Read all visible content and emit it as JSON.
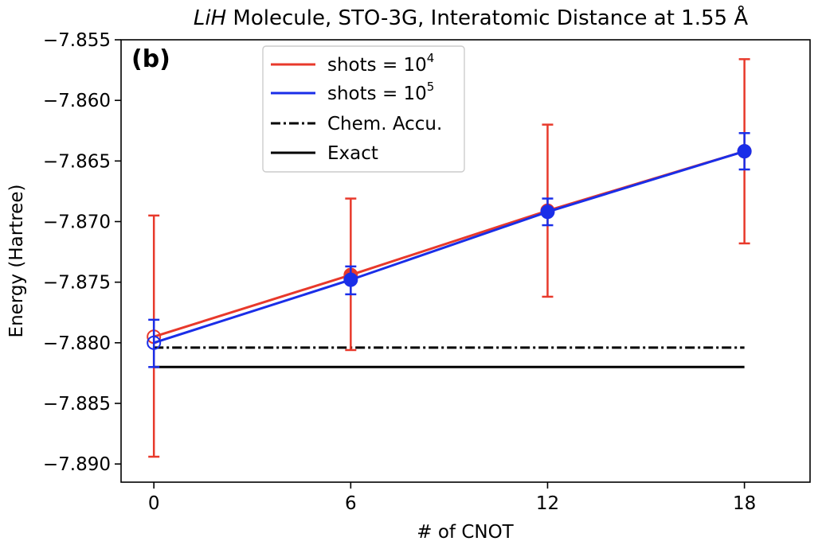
{
  "chart_data": {
    "type": "line",
    "title": {
      "molecule": "LiH",
      "rest": " Molecule, STO-3G, Interatomic Distance at 1.55 Å"
    },
    "panel_label": "(b)",
    "xlabel": "# of CNOT",
    "ylabel": "Energy (Hartree)",
    "xlim": [
      -1,
      20
    ],
    "ylim": [
      -7.8915,
      -7.855
    ],
    "xticks": [
      0,
      6,
      12,
      18
    ],
    "xtick_labels": [
      "0",
      "6",
      "12",
      "18"
    ],
    "yticks": [
      -7.855,
      -7.86,
      -7.865,
      -7.87,
      -7.875,
      -7.88,
      -7.885,
      -7.89
    ],
    "ytick_labels": [
      "−7.855",
      "−7.860",
      "−7.865",
      "−7.870",
      "−7.875",
      "−7.880",
      "−7.885",
      "−7.890"
    ],
    "series": [
      {
        "name_base": "shots = 10",
        "name_exp": "4",
        "color": "#e8392b",
        "x": [
          0,
          6,
          12,
          18
        ],
        "y": [
          -7.8795,
          -7.8744,
          -7.8691,
          -7.8642
        ],
        "err_low": [
          -7.8894,
          -7.8806,
          -7.8762,
          -7.8718
        ],
        "err_high": [
          -7.8695,
          -7.8681,
          -7.862,
          -7.8566
        ],
        "marker_open": [
          true,
          false,
          false,
          false
        ]
      },
      {
        "name_base": "shots = 10",
        "name_exp": "5",
        "color": "#1a2ee8",
        "x": [
          0,
          6,
          12,
          18
        ],
        "y": [
          -7.88,
          -7.8748,
          -7.8692,
          -7.8642
        ],
        "err_low": [
          -7.882,
          -7.876,
          -7.8703,
          -7.8657
        ],
        "err_high": [
          -7.8781,
          -7.8737,
          -7.8681,
          -7.8627
        ],
        "marker_open": [
          true,
          false,
          false,
          false
        ]
      }
    ],
    "reference_lines": [
      {
        "name": "Chem. Accu.",
        "y": -7.8804,
        "x": [
          0,
          18
        ],
        "style": "dashdot",
        "color": "#000000"
      },
      {
        "name": "Exact",
        "y": -7.882,
        "x": [
          0,
          18
        ],
        "style": "solid",
        "color": "#000000"
      }
    ],
    "legend_placement": "top-center",
    "grid": false
  }
}
